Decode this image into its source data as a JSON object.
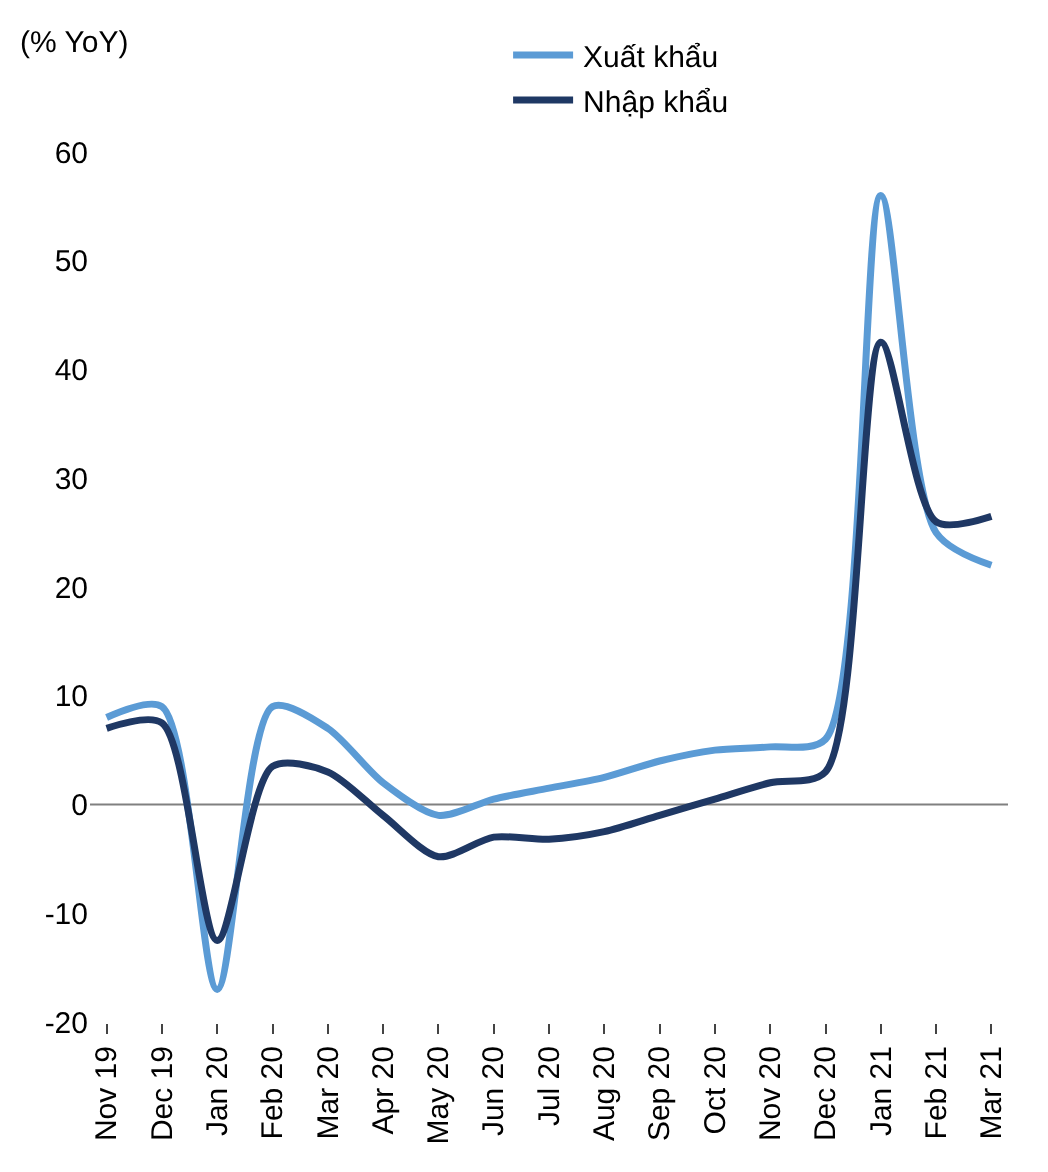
{
  "chart_data": {
    "type": "line",
    "ylabel": "(% YoY)",
    "categories": [
      "Nov 19",
      "Dec 19",
      "Jan 20",
      "Feb 20",
      "Mar 20",
      "Apr 20",
      "May 20",
      "Jun 20",
      "Jul 20",
      "Aug 20",
      "Sep 20",
      "Oct 20",
      "Nov 20",
      "Dec 20",
      "Jan 21",
      "Feb 21",
      "Mar 21"
    ],
    "series": [
      {
        "name": "Xuất khẩu",
        "color": "#5b9bd5",
        "values": [
          8,
          9,
          -17,
          9,
          7,
          2,
          -1,
          0.5,
          1.5,
          2.5,
          4,
          5,
          5.3,
          6,
          56,
          25,
          22
        ]
      },
      {
        "name": "Nhập khẩu",
        "color": "#1f3864",
        "values": [
          7,
          7.5,
          -12.5,
          3.5,
          3,
          -1,
          -4.8,
          -3,
          -3.2,
          -2.5,
          -1,
          0.5,
          2,
          3,
          42.5,
          26,
          26.5
        ]
      }
    ],
    "ylim": [
      -20,
      60
    ],
    "yticks": [
      -20,
      -10,
      0,
      10,
      20,
      30,
      40,
      50,
      60
    ],
    "grid": false,
    "ref_lines": [
      {
        "axis": "y",
        "value": 0,
        "color": "#808080"
      }
    ],
    "legend": "top",
    "marker": "none",
    "line_style": "solid"
  }
}
